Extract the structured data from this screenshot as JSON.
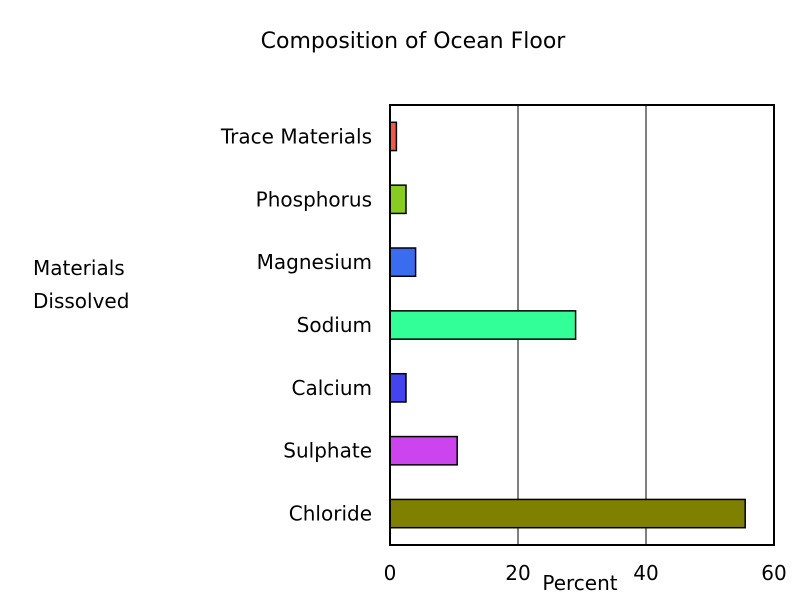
{
  "chart_data": {
    "type": "bar",
    "orientation": "horizontal",
    "title": "Composition of Ocean Floor",
    "xlabel": "Percent",
    "ylabel_lines": [
      "Materials",
      "Dissolved"
    ],
    "categories": [
      "Trace Materials",
      "Phosphorus",
      "Magnesium",
      "Sodium",
      "Calcium",
      "Sulphate",
      "Chloride"
    ],
    "values": [
      1,
      2.5,
      4,
      29,
      2.5,
      10.5,
      55.5
    ],
    "colors": [
      "#f05a4a",
      "#88cc22",
      "#3a6cf0",
      "#33ff99",
      "#4444ee",
      "#cc44ee",
      "#808000"
    ],
    "xlim": [
      0,
      60
    ],
    "xticks": [
      0,
      20,
      40,
      60
    ],
    "xtick_labels": [
      "0",
      "20",
      "40",
      "60"
    ],
    "grid": true
  }
}
